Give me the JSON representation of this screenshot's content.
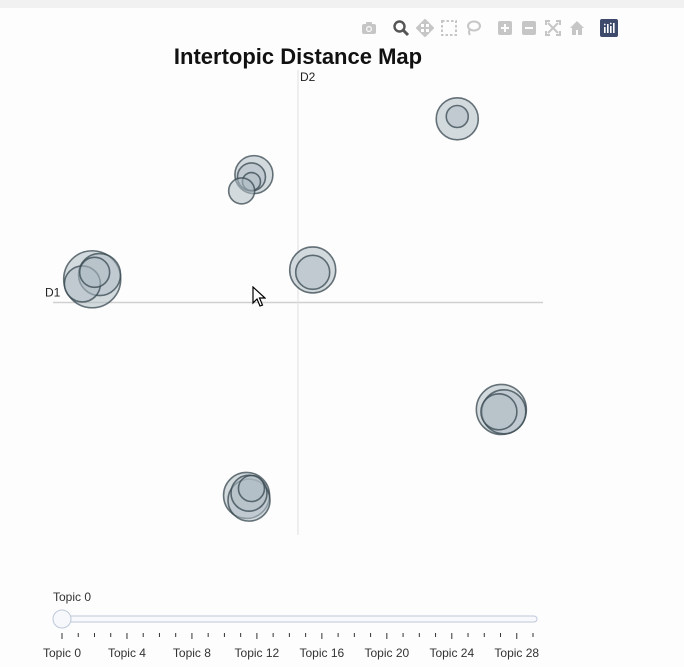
{
  "chart_data": {
    "type": "scatter",
    "title": "Intertopic Distance Map",
    "x_axis_label": "D1",
    "y_axis_label": "D2",
    "xlim": [
      -10,
      10
    ],
    "ylim": [
      -10,
      10
    ],
    "grid": false,
    "marker_fill": "#b0bec5",
    "marker_stroke": "#37474f",
    "points": [
      {
        "x": -8.4,
        "y": 1.0,
        "size": 5.7
      },
      {
        "x": -8.1,
        "y": 1.2,
        "size": 4.2
      },
      {
        "x": -8.8,
        "y": 0.8,
        "size": 3.6
      },
      {
        "x": -8.3,
        "y": 1.3,
        "size": 3.0
      },
      {
        "x": -1.8,
        "y": 5.5,
        "size": 3.8
      },
      {
        "x": -1.9,
        "y": 5.4,
        "size": 2.8
      },
      {
        "x": -1.9,
        "y": 5.2,
        "size": 1.8
      },
      {
        "x": -2.3,
        "y": 4.8,
        "size": 2.6
      },
      {
        "x": 0.6,
        "y": 1.4,
        "size": 4.6
      },
      {
        "x": 0.6,
        "y": 1.3,
        "size": 3.4
      },
      {
        "x": 6.5,
        "y": 7.9,
        "size": 4.2
      },
      {
        "x": 6.5,
        "y": 8.0,
        "size": 2.2
      },
      {
        "x": 8.3,
        "y": -4.6,
        "size": 5.0
      },
      {
        "x": 8.4,
        "y": -4.7,
        "size": 4.4
      },
      {
        "x": 8.2,
        "y": -4.7,
        "size": 3.6
      },
      {
        "x": -2.1,
        "y": -8.3,
        "size": 4.6
      },
      {
        "x": -2.0,
        "y": -8.5,
        "size": 4.2
      },
      {
        "x": -2.0,
        "y": -8.2,
        "size": 3.6
      },
      {
        "x": -1.9,
        "y": -8.0,
        "size": 2.6
      }
    ]
  },
  "slider": {
    "current_label": "Topic 0",
    "value": 0,
    "min": 0,
    "max": 29,
    "tick_labels": [
      "Topic 0",
      "Topic 4",
      "Topic 8",
      "Topic 12",
      "Topic 16",
      "Topic 20",
      "Topic 24",
      "Topic 28"
    ]
  },
  "modebar": {
    "buttons": [
      "camera-icon",
      "zoom-icon",
      "pan-icon",
      "box-select-icon",
      "lasso-select-icon",
      "zoom-in-icon",
      "zoom-out-icon",
      "autoscale-icon",
      "reset-axes-icon",
      "plotly-logo-icon"
    ]
  }
}
